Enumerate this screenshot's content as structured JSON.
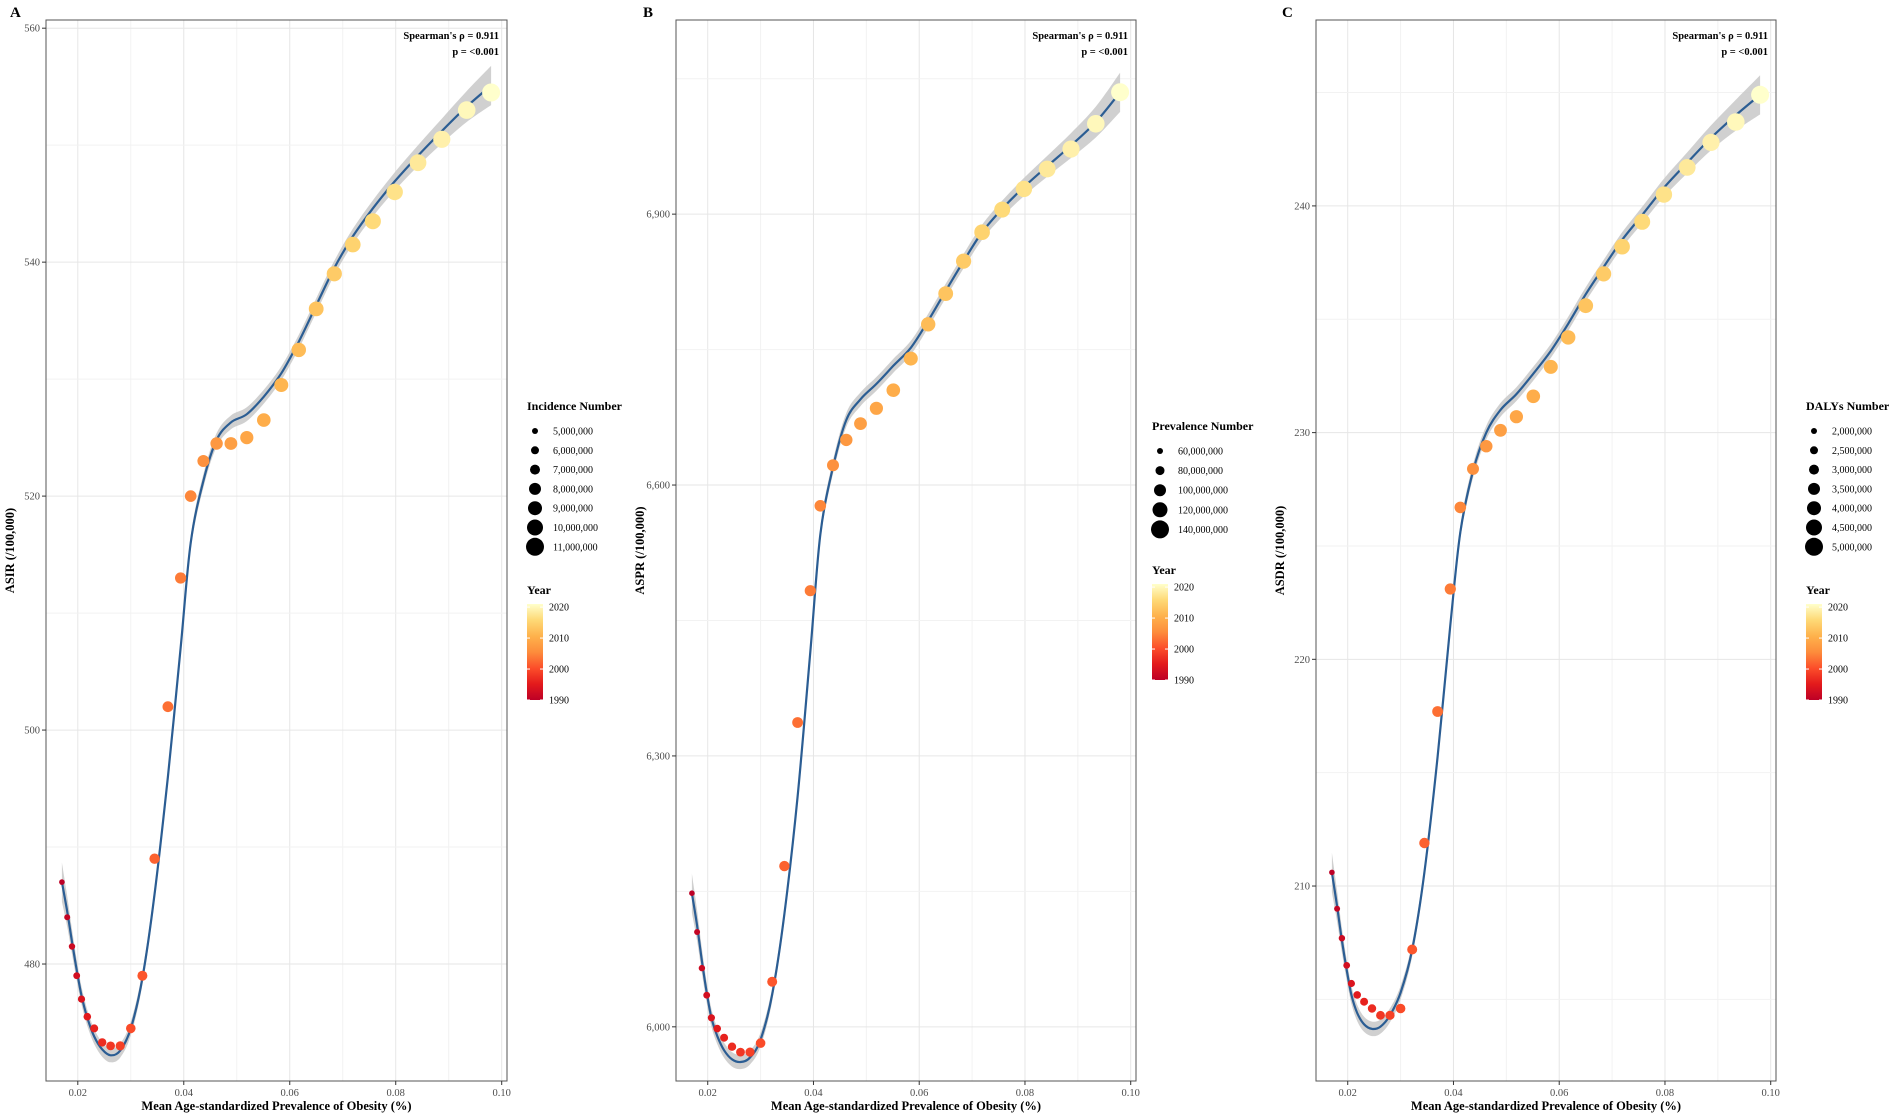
{
  "colors": {
    "line": "#2b5d93",
    "ribbon": "#c8c8c8",
    "grid_major": "#e6e6e6",
    "grid_minor": "#f2f2f2",
    "panel_border": "#555555",
    "colorbar": [
      "#bd0026",
      "#e31a1c",
      "#fc4e2a",
      "#fd8d3c",
      "#feb24c",
      "#fed976",
      "#ffffcc"
    ]
  },
  "chart_data": [
    {
      "type": "scatter",
      "panel": "A",
      "xlabel": "Mean Age-standardized Prevalence of Obesity (%)",
      "ylabel": "ASIR (/100,000)",
      "xlim": [
        0.014,
        0.101
      ],
      "ylim": [
        470,
        560.7
      ],
      "xticks": [
        0.02,
        0.04,
        0.06,
        0.08,
        0.1
      ],
      "xtick_labels": [
        "0.02",
        "0.04",
        "0.06",
        "0.08",
        "0.10"
      ],
      "yticks": [
        480,
        500,
        520,
        540,
        560
      ],
      "ytick_labels": [
        "480",
        "500",
        "520",
        "540",
        "560"
      ],
      "annotation": [
        "Spearman's ρ = 0.911",
        "p = <0.001"
      ],
      "years": [
        1990,
        1991,
        1992,
        1993,
        1994,
        1995,
        1996,
        1997,
        1998,
        1999,
        2000,
        2001,
        2002,
        2003,
        2004,
        2005,
        2006,
        2007,
        2008,
        2009,
        2010,
        2011,
        2012,
        2013,
        2014,
        2015,
        2016,
        2017,
        2018,
        2019,
        2020,
        2021
      ],
      "x": [
        0.017,
        0.018,
        0.0189,
        0.0198,
        0.0207,
        0.0218,
        0.0231,
        0.0246,
        0.0262,
        0.028,
        0.03,
        0.0322,
        0.0345,
        0.037,
        0.0394,
        0.0413,
        0.0437,
        0.0462,
        0.0489,
        0.0519,
        0.0551,
        0.0584,
        0.0617,
        0.065,
        0.0684,
        0.0719,
        0.0757,
        0.0798,
        0.0842,
        0.0887,
        0.0934,
        0.098
      ],
      "y": [
        487.0,
        484.0,
        481.5,
        479.0,
        477.0,
        475.5,
        474.5,
        473.3,
        473.0,
        473.0,
        474.5,
        479.0,
        489.0,
        502.0,
        513.0,
        520.0,
        523.0,
        524.5,
        524.5,
        525.0,
        526.5,
        529.5,
        532.5,
        536.0,
        539.0,
        541.5,
        543.5,
        546.0,
        548.5,
        550.5,
        553.0,
        554.5
      ],
      "fit": [
        487.0,
        484.5,
        481.9,
        479.5,
        477.3,
        475.4,
        473.8,
        472.7,
        472.2,
        472.6,
        474.5,
        478.8,
        486.0,
        496.0,
        507.0,
        516.0,
        521.3,
        524.8,
        526.3,
        527.0,
        528.5,
        530.5,
        533.2,
        536.3,
        539.5,
        542.2,
        544.6,
        546.9,
        549.1,
        551.2,
        553.3,
        555.1
      ],
      "size_legend_title": "Incidence Number",
      "size_legend_labels": [
        "5,000,000",
        "6,000,000",
        "7,000,000",
        "8,000,000",
        "9,000,000",
        "10,000,000",
        "11,000,000"
      ],
      "color_legend_title": "Year",
      "color_ticks": [
        2020,
        2010,
        2000,
        1990
      ],
      "color_tick_labels": [
        "2020",
        "2010",
        "2000",
        "1990"
      ]
    },
    {
      "type": "scatter",
      "panel": "B",
      "xlabel": "Mean Age-standardized Prevalence of Obesity (%)",
      "ylabel": "ASPR (/100,000)",
      "xlim": [
        0.014,
        0.101
      ],
      "ylim": [
        5940,
        7115
      ],
      "xticks": [
        0.02,
        0.04,
        0.06,
        0.08,
        0.1
      ],
      "xtick_labels": [
        "0.02",
        "0.04",
        "0.06",
        "0.08",
        "0.10"
      ],
      "yticks": [
        6000,
        6300,
        6600,
        6900
      ],
      "ytick_labels": [
        "6,000",
        "6,300",
        "6,600",
        "6,900"
      ],
      "annotation": [
        "Spearman's ρ = 0.911",
        "p = <0.001"
      ],
      "years": [
        1990,
        1991,
        1992,
        1993,
        1994,
        1995,
        1996,
        1997,
        1998,
        1999,
        2000,
        2001,
        2002,
        2003,
        2004,
        2005,
        2006,
        2007,
        2008,
        2009,
        2010,
        2011,
        2012,
        2013,
        2014,
        2015,
        2016,
        2017,
        2018,
        2019,
        2020,
        2021
      ],
      "x": [
        0.017,
        0.018,
        0.0189,
        0.0198,
        0.0207,
        0.0218,
        0.0231,
        0.0246,
        0.0262,
        0.028,
        0.03,
        0.0322,
        0.0345,
        0.037,
        0.0394,
        0.0413,
        0.0437,
        0.0462,
        0.0489,
        0.0519,
        0.0551,
        0.0584,
        0.0617,
        0.065,
        0.0684,
        0.0719,
        0.0757,
        0.0798,
        0.0842,
        0.0887,
        0.0934,
        0.098
      ],
      "y": [
        6148,
        6105,
        6065,
        6035,
        6010,
        5998,
        5988,
        5978,
        5972,
        5972,
        5982,
        6050,
        6178,
        6337,
        6483,
        6577,
        6622,
        6650,
        6668,
        6685,
        6705,
        6740,
        6778,
        6812,
        6848,
        6880,
        6905,
        6928,
        6950,
        6972,
        7000,
        7035
      ],
      "fit": [
        6148,
        6112,
        6073,
        6038,
        6010,
        5990,
        5974,
        5964,
        5961,
        5966,
        5986,
        6036,
        6125,
        6255,
        6415,
        6545,
        6620,
        6672,
        6695,
        6712,
        6732,
        6752,
        6782,
        6815,
        6848,
        6880,
        6906,
        6930,
        6953,
        6976,
        7002,
        7035
      ],
      "size_legend_title": "Prevalence Number",
      "size_legend_labels": [
        "60,000,000",
        "80,000,000",
        "100,000,000",
        "120,000,000",
        "140,000,000"
      ],
      "color_legend_title": "Year",
      "color_ticks": [
        2020,
        2010,
        2000,
        1990
      ],
      "color_tick_labels": [
        "2020",
        "2010",
        "2000",
        "1990"
      ]
    },
    {
      "type": "scatter",
      "panel": "C",
      "xlabel": "Mean Age-standardized Prevalence of Obesity (%)",
      "ylabel": "ASDR (/100,000)",
      "xlim": [
        0.014,
        0.101
      ],
      "ylim": [
        201.4,
        248.2
      ],
      "xticks": [
        0.02,
        0.04,
        0.06,
        0.08,
        0.1
      ],
      "xtick_labels": [
        "0.02",
        "0.04",
        "0.06",
        "0.08",
        "0.10"
      ],
      "yticks": [
        210,
        220,
        230,
        240
      ],
      "ytick_labels": [
        "210",
        "220",
        "230",
        "240"
      ],
      "annotation": [
        "Spearman's ρ = 0.911",
        "p = <0.001"
      ],
      "years": [
        1990,
        1991,
        1992,
        1993,
        1994,
        1995,
        1996,
        1997,
        1998,
        1999,
        2000,
        2001,
        2002,
        2003,
        2004,
        2005,
        2006,
        2007,
        2008,
        2009,
        2010,
        2011,
        2012,
        2013,
        2014,
        2015,
        2016,
        2017,
        2018,
        2019,
        2020,
        2021
      ],
      "x": [
        0.017,
        0.018,
        0.0189,
        0.0198,
        0.0207,
        0.0218,
        0.0231,
        0.0246,
        0.0262,
        0.028,
        0.03,
        0.0322,
        0.0345,
        0.037,
        0.0394,
        0.0413,
        0.0437,
        0.0462,
        0.0489,
        0.0519,
        0.0551,
        0.0584,
        0.0617,
        0.065,
        0.0684,
        0.0719,
        0.0757,
        0.0798,
        0.0842,
        0.0887,
        0.0934,
        0.098
      ],
      "y": [
        210.6,
        209.0,
        207.7,
        206.5,
        205.7,
        205.2,
        204.9,
        204.6,
        204.3,
        204.3,
        204.6,
        207.2,
        211.9,
        217.7,
        223.1,
        226.7,
        228.4,
        229.4,
        230.1,
        230.7,
        231.6,
        232.9,
        234.2,
        235.6,
        237.0,
        238.2,
        239.3,
        240.5,
        241.7,
        242.8,
        243.7,
        244.9
      ],
      "fit": [
        210.6,
        209.1,
        207.6,
        206.3,
        205.2,
        204.4,
        203.9,
        203.7,
        203.8,
        204.3,
        205.3,
        207.2,
        210.6,
        215.7,
        221.5,
        225.6,
        228.3,
        230.0,
        231.0,
        231.7,
        232.6,
        233.6,
        234.8,
        236.1,
        237.3,
        238.5,
        239.6,
        240.8,
        241.9,
        243.0,
        244.0,
        244.9
      ],
      "size_legend_title": "DALYs Number",
      "size_legend_labels": [
        "2,000,000",
        "2,500,000",
        "3,000,000",
        "3,500,000",
        "4,000,000",
        "4,500,000",
        "5,000,000"
      ],
      "color_legend_title": "Year",
      "color_ticks": [
        2020,
        2010,
        2000,
        1990
      ],
      "color_tick_labels": [
        "2020",
        "2010",
        "2000",
        "1990"
      ]
    }
  ]
}
